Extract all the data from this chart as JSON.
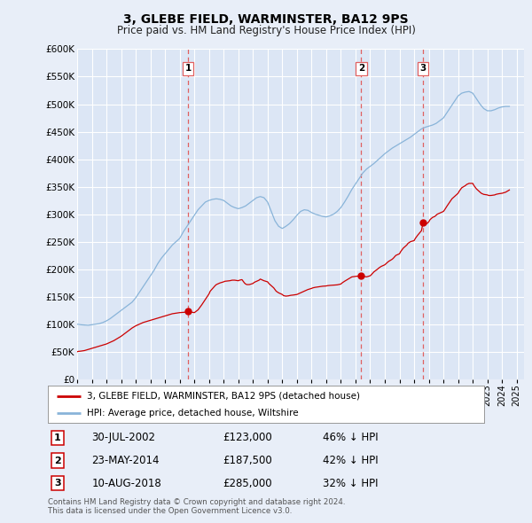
{
  "title": "3, GLEBE FIELD, WARMINSTER, BA12 9PS",
  "subtitle": "Price paid vs. HM Land Registry's House Price Index (HPI)",
  "legend_property": "3, GLEBE FIELD, WARMINSTER, BA12 9PS (detached house)",
  "legend_hpi": "HPI: Average price, detached house, Wiltshire",
  "footnote1": "Contains HM Land Registry data © Crown copyright and database right 2024.",
  "footnote2": "This data is licensed under the Open Government Licence v3.0.",
  "ylim": [
    0,
    600000
  ],
  "yticks": [
    0,
    50000,
    100000,
    150000,
    200000,
    250000,
    300000,
    350000,
    400000,
    450000,
    500000,
    550000,
    600000
  ],
  "ytick_labels": [
    "£0",
    "£50K",
    "£100K",
    "£150K",
    "£200K",
    "£250K",
    "£300K",
    "£350K",
    "£400K",
    "£450K",
    "£500K",
    "£550K",
    "£600K"
  ],
  "xlim_start": 1995.0,
  "xlim_end": 2025.5,
  "sales": [
    {
      "num": 1,
      "year": 2002.58,
      "price": 123000,
      "date": "30-JUL-2002",
      "label": "£123,000",
      "pct": "46% ↓ HPI"
    },
    {
      "num": 2,
      "year": 2014.39,
      "price": 187500,
      "date": "23-MAY-2014",
      "label": "£187,500",
      "pct": "42% ↓ HPI"
    },
    {
      "num": 3,
      "year": 2018.61,
      "price": 285000,
      "date": "10-AUG-2018",
      "label": "£285,000",
      "pct": "32% ↓ HPI"
    }
  ],
  "hpi_color": "#89b4d9",
  "sale_color": "#cc0000",
  "vline_color": "#e06060",
  "bg_color": "#e8eef8",
  "plot_bg": "#dce6f5",
  "grid_color": "#c8d4e8",
  "hpi_x": [
    1995.0,
    1995.25,
    1995.5,
    1995.75,
    1996.0,
    1996.25,
    1996.5,
    1996.75,
    1997.0,
    1997.25,
    1997.5,
    1997.75,
    1998.0,
    1998.25,
    1998.5,
    1998.75,
    1999.0,
    1999.25,
    1999.5,
    1999.75,
    2000.0,
    2000.25,
    2000.5,
    2000.75,
    2001.0,
    2001.25,
    2001.5,
    2001.75,
    2002.0,
    2002.25,
    2002.5,
    2002.75,
    2003.0,
    2003.25,
    2003.5,
    2003.75,
    2004.0,
    2004.25,
    2004.5,
    2004.75,
    2005.0,
    2005.25,
    2005.5,
    2005.75,
    2006.0,
    2006.25,
    2006.5,
    2006.75,
    2007.0,
    2007.25,
    2007.5,
    2007.75,
    2008.0,
    2008.25,
    2008.5,
    2008.75,
    2009.0,
    2009.25,
    2009.5,
    2009.75,
    2010.0,
    2010.25,
    2010.5,
    2010.75,
    2011.0,
    2011.25,
    2011.5,
    2011.75,
    2012.0,
    2012.25,
    2012.5,
    2012.75,
    2013.0,
    2013.25,
    2013.5,
    2013.75,
    2014.0,
    2014.25,
    2014.5,
    2014.75,
    2015.0,
    2015.25,
    2015.5,
    2015.75,
    2016.0,
    2016.25,
    2016.5,
    2016.75,
    2017.0,
    2017.25,
    2017.5,
    2017.75,
    2018.0,
    2018.25,
    2018.5,
    2018.75,
    2019.0,
    2019.25,
    2019.5,
    2019.75,
    2020.0,
    2020.25,
    2020.5,
    2020.75,
    2021.0,
    2021.25,
    2021.5,
    2021.75,
    2022.0,
    2022.25,
    2022.5,
    2022.75,
    2023.0,
    2023.25,
    2023.5,
    2023.75,
    2024.0,
    2024.25,
    2024.5
  ],
  "hpi_y": [
    100000,
    99000,
    98500,
    98000,
    99000,
    100000,
    101000,
    103000,
    106000,
    110000,
    115000,
    120000,
    125000,
    130000,
    135000,
    140000,
    148000,
    158000,
    168000,
    178000,
    188000,
    198000,
    210000,
    220000,
    228000,
    236000,
    244000,
    250000,
    256000,
    268000,
    278000,
    288000,
    298000,
    308000,
    315000,
    322000,
    325000,
    327000,
    328000,
    327000,
    325000,
    320000,
    315000,
    312000,
    310000,
    312000,
    315000,
    320000,
    325000,
    330000,
    332000,
    330000,
    322000,
    305000,
    288000,
    278000,
    274000,
    278000,
    283000,
    290000,
    298000,
    305000,
    308000,
    307000,
    303000,
    300000,
    298000,
    296000,
    295000,
    297000,
    300000,
    305000,
    312000,
    322000,
    333000,
    345000,
    355000,
    365000,
    375000,
    382000,
    387000,
    392000,
    398000,
    404000,
    410000,
    415000,
    420000,
    424000,
    428000,
    432000,
    436000,
    440000,
    445000,
    450000,
    455000,
    458000,
    460000,
    462000,
    465000,
    470000,
    475000,
    485000,
    495000,
    505000,
    515000,
    520000,
    522000,
    523000,
    520000,
    510000,
    500000,
    492000,
    488000,
    488000,
    490000,
    493000,
    495000,
    496000,
    496000
  ],
  "red_x": [
    1995.0,
    1995.083,
    1995.25,
    1995.5,
    1995.75,
    1996.0,
    1996.25,
    1996.5,
    1996.75,
    1997.0,
    1997.25,
    1997.5,
    1997.75,
    1998.0,
    1998.25,
    1998.5,
    1998.75,
    1999.0,
    1999.25,
    1999.5,
    1999.75,
    2000.0,
    2000.25,
    2000.5,
    2000.75,
    2001.0,
    2001.25,
    2001.5,
    2001.75,
    2002.0,
    2002.25,
    2002.5,
    2002.58,
    2002.75,
    2003.0,
    2003.25,
    2003.5,
    2003.75,
    2004.0,
    2004.083,
    2004.25,
    2004.417,
    2004.5,
    2004.583,
    2004.75,
    2005.0,
    2005.083,
    2005.25,
    2005.417,
    2005.5,
    2005.583,
    2005.75,
    2006.0,
    2006.083,
    2006.25,
    2006.417,
    2006.5,
    2006.583,
    2006.75,
    2007.0,
    2007.083,
    2007.25,
    2007.417,
    2007.5,
    2007.583,
    2007.75,
    2008.0,
    2008.083,
    2008.25,
    2008.417,
    2008.5,
    2008.583,
    2008.75,
    2009.0,
    2009.083,
    2009.25,
    2009.417,
    2009.5,
    2009.583,
    2009.75,
    2010.0,
    2010.083,
    2010.25,
    2010.5,
    2010.75,
    2011.0,
    2011.083,
    2011.25,
    2011.5,
    2011.75,
    2012.0,
    2012.083,
    2012.25,
    2012.5,
    2012.75,
    2013.0,
    2013.083,
    2013.25,
    2013.5,
    2013.75,
    2014.0,
    2014.083,
    2014.25,
    2014.39,
    2014.5,
    2014.583,
    2014.75,
    2015.0,
    2015.083,
    2015.25,
    2015.5,
    2015.583,
    2015.75,
    2016.0,
    2016.083,
    2016.25,
    2016.5,
    2016.583,
    2016.75,
    2017.0,
    2017.083,
    2017.25,
    2017.5,
    2017.583,
    2017.75,
    2018.0,
    2018.083,
    2018.25,
    2018.5,
    2018.61,
    2018.75,
    2019.0,
    2019.083,
    2019.25,
    2019.417,
    2019.5,
    2019.583,
    2019.75,
    2020.0,
    2020.083,
    2020.25,
    2020.5,
    2020.583,
    2020.75,
    2021.0,
    2021.083,
    2021.25,
    2021.5,
    2021.583,
    2021.75,
    2022.0,
    2022.083,
    2022.25,
    2022.5,
    2022.583,
    2022.75,
    2023.0,
    2023.083,
    2023.25,
    2023.5,
    2023.583,
    2023.75,
    2024.0,
    2024.25,
    2024.5
  ],
  "red_y": [
    50000,
    50500,
    51000,
    52000,
    54000,
    56000,
    58000,
    60000,
    62000,
    64000,
    67000,
    70000,
    74000,
    78000,
    83000,
    88000,
    93000,
    97000,
    100000,
    103000,
    105000,
    107000,
    109000,
    111000,
    113000,
    115000,
    117000,
    119000,
    120000,
    121000,
    121500,
    122000,
    123000,
    122000,
    121000,
    126000,
    135000,
    145000,
    155000,
    160000,
    165000,
    170000,
    172000,
    173000,
    175000,
    177000,
    178000,
    178500,
    179000,
    179500,
    180000,
    180000,
    179000,
    180000,
    181000,
    175000,
    173000,
    172000,
    172000,
    174000,
    176000,
    178000,
    180000,
    182000,
    181000,
    179000,
    177000,
    174000,
    170000,
    166000,
    163000,
    160000,
    157000,
    154000,
    152000,
    151000,
    151500,
    152000,
    152500,
    153000,
    154000,
    155000,
    157000,
    160000,
    163000,
    165000,
    166000,
    167000,
    168000,
    169000,
    169500,
    170000,
    170500,
    171000,
    171500,
    173000,
    175000,
    178000,
    182000,
    186000,
    187000,
    187200,
    187400,
    187500,
    187000,
    186500,
    186000,
    188000,
    190000,
    195000,
    200000,
    202000,
    205000,
    208000,
    210000,
    214000,
    218000,
    220000,
    225000,
    228000,
    232000,
    238000,
    244000,
    247000,
    250000,
    252000,
    256000,
    262000,
    270000,
    285000,
    280000,
    286000,
    290000,
    294000,
    296000,
    298000,
    300000,
    302000,
    305000,
    308000,
    315000,
    325000,
    328000,
    332000,
    338000,
    342000,
    348000,
    352000,
    354000,
    356000,
    356000,
    352000,
    346000,
    340000,
    338000,
    336000,
    335000,
    334000,
    334000,
    335000,
    336000,
    337000,
    338000,
    340000,
    344000
  ]
}
